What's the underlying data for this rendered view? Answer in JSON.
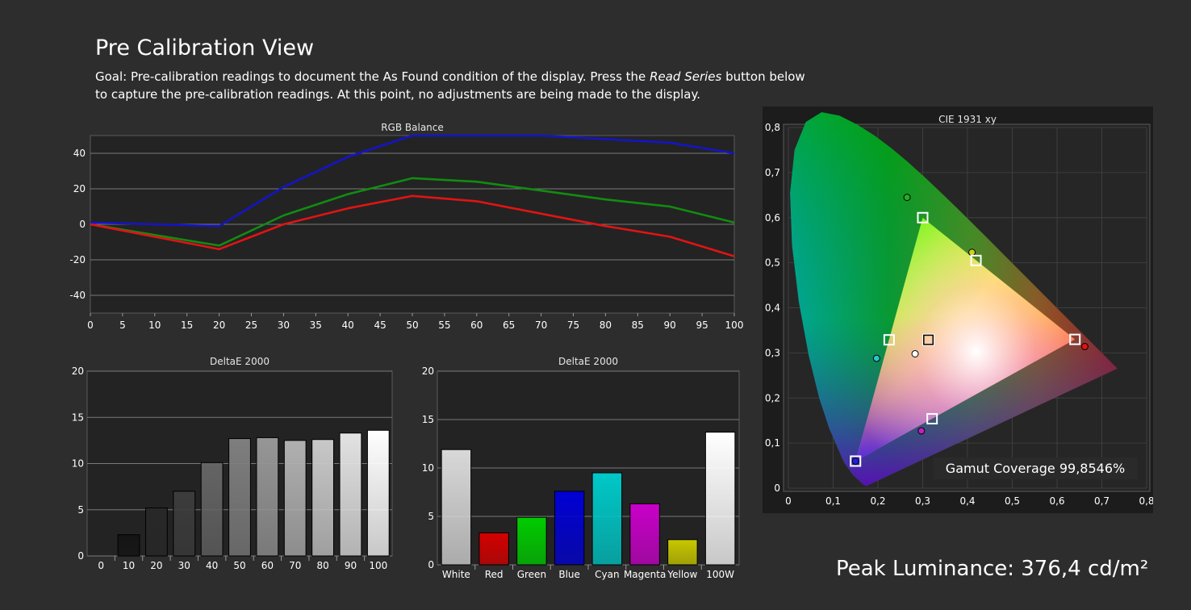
{
  "header": {
    "title": "Pre Calibration View",
    "goal_before": "Goal: Pre-calibration readings to document the As Found condition of the display. Press the ",
    "goal_emphasis": "Read Series",
    "goal_after": " button below to capture the pre-calibration readings. At this point, no adjustments are being made to the display."
  },
  "peak_luminance": "Peak Luminance: 376,4 cd/m²",
  "chart_data": [
    {
      "id": "rgb-balance",
      "type": "line",
      "title": "RGB Balance",
      "x": [
        0,
        20,
        30,
        40,
        50,
        60,
        70,
        80,
        90,
        100
      ],
      "xticks": [
        0,
        5,
        10,
        15,
        20,
        25,
        30,
        35,
        40,
        45,
        50,
        55,
        60,
        65,
        70,
        75,
        80,
        85,
        90,
        95,
        100
      ],
      "yticks": [
        -40,
        -20,
        0,
        20,
        40
      ],
      "xlim": [
        0,
        100
      ],
      "ylim": [
        -50,
        50
      ],
      "series": [
        {
          "color": "#1414c8",
          "values": [
            1,
            -1,
            21,
            38,
            50,
            50,
            50,
            48,
            46,
            40
          ]
        },
        {
          "color": "#118c11",
          "values": [
            0,
            -12,
            5,
            17,
            26,
            24,
            19,
            14,
            10,
            1
          ]
        },
        {
          "color": "#e01414",
          "values": [
            0,
            -14,
            0,
            9,
            16,
            13,
            6,
            -1,
            -7,
            -18
          ]
        }
      ]
    },
    {
      "id": "deltae-grayscale",
      "type": "bar",
      "title": "DeltaE 2000",
      "categories": [
        "0",
        "10",
        "20",
        "30",
        "40",
        "50",
        "60",
        "70",
        "80",
        "90",
        "100"
      ],
      "values": [
        0,
        2.3,
        5.2,
        7.0,
        10.1,
        12.7,
        12.8,
        12.5,
        12.6,
        13.3,
        13.6
      ],
      "colors": [
        "#000000",
        "#141414",
        "#282828",
        "#3c3c3c",
        "#646464",
        "#7e7e7e",
        "#969696",
        "#b0b0b0",
        "#c8c8c8",
        "#e2e2e2",
        "#ffffff"
      ],
      "yticks": [
        0,
        5,
        10,
        15,
        20
      ],
      "ylim": [
        0,
        20
      ]
    },
    {
      "id": "deltae-colors",
      "type": "bar",
      "title": "DeltaE 2000",
      "categories": [
        "White",
        "Red",
        "Green",
        "Blue",
        "Cyan",
        "Magenta",
        "Yellow",
        "100W"
      ],
      "values": [
        11.9,
        3.3,
        4.9,
        7.6,
        9.5,
        6.3,
        2.6,
        13.7
      ],
      "colors": [
        "#d8d8d8",
        "#d40000",
        "#00cc00",
        "#0000d4",
        "#00c8c8",
        "#c800c8",
        "#c8c800",
        "#ffffff"
      ],
      "yticks": [
        0,
        5,
        10,
        15,
        20
      ],
      "ylim": [
        0,
        20
      ]
    },
    {
      "id": "cie-1931",
      "type": "scatter",
      "title": "CIE 1931 xy",
      "xticks": [
        "0",
        "0,1",
        "0,2",
        "0,3",
        "0,4",
        "0,5",
        "0,6",
        "0,7",
        "0,8"
      ],
      "yticks": [
        "0",
        "0,1",
        "0,2",
        "0,3",
        "0,4",
        "0,5",
        "0,6",
        "0,7",
        "0,8"
      ],
      "xlim": [
        0,
        0.8
      ],
      "ylim": [
        0,
        0.8
      ],
      "gamut_coverage": "Gamut Coverage 99,8546%",
      "targets": [
        {
          "name": "red",
          "x": 0.64,
          "y": 0.33
        },
        {
          "name": "green",
          "x": 0.3,
          "y": 0.6
        },
        {
          "name": "blue",
          "x": 0.15,
          "y": 0.06
        },
        {
          "name": "white",
          "x": 0.3127,
          "y": 0.329
        },
        {
          "name": "cyan",
          "x": 0.225,
          "y": 0.329
        },
        {
          "name": "magenta",
          "x": 0.321,
          "y": 0.154
        },
        {
          "name": "yellow",
          "x": 0.419,
          "y": 0.505
        }
      ],
      "measured": [
        {
          "name": "red",
          "x": 0.662,
          "y": 0.314,
          "color": "#e01414"
        },
        {
          "name": "green",
          "x": 0.265,
          "y": 0.645,
          "color": "#22b022"
        },
        {
          "name": "blue",
          "x": 0.15,
          "y": 0.06,
          "color": "#2020e0"
        },
        {
          "name": "white",
          "x": 0.283,
          "y": 0.298,
          "color": "#ffffff"
        },
        {
          "name": "cyan",
          "x": 0.197,
          "y": 0.288,
          "color": "#22c8c8"
        },
        {
          "name": "magenta",
          "x": 0.297,
          "y": 0.127,
          "color": "#c020c0"
        },
        {
          "name": "yellow",
          "x": 0.41,
          "y": 0.523,
          "color": "#d0d020"
        }
      ]
    }
  ]
}
